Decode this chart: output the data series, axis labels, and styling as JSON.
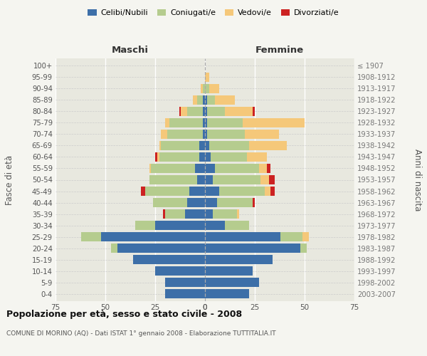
{
  "age_groups": [
    "0-4",
    "5-9",
    "10-14",
    "15-19",
    "20-24",
    "25-29",
    "30-34",
    "35-39",
    "40-44",
    "45-49",
    "50-54",
    "55-59",
    "60-64",
    "65-69",
    "70-74",
    "75-79",
    "80-84",
    "85-89",
    "90-94",
    "95-99",
    "100+"
  ],
  "birth_years": [
    "2003-2007",
    "1998-2002",
    "1993-1997",
    "1988-1992",
    "1983-1987",
    "1978-1982",
    "1973-1977",
    "1968-1972",
    "1963-1967",
    "1958-1962",
    "1953-1957",
    "1948-1952",
    "1943-1947",
    "1938-1942",
    "1933-1937",
    "1928-1932",
    "1923-1927",
    "1918-1922",
    "1913-1917",
    "1908-1912",
    "≤ 1907"
  ],
  "maschi": {
    "celibi": [
      20,
      20,
      25,
      36,
      44,
      52,
      25,
      10,
      9,
      8,
      4,
      5,
      3,
      3,
      1,
      1,
      1,
      1,
      0,
      0,
      0
    ],
    "coniugati": [
      0,
      0,
      0,
      0,
      3,
      10,
      10,
      10,
      17,
      22,
      24,
      22,
      20,
      19,
      18,
      17,
      8,
      3,
      1,
      0,
      0
    ],
    "vedovi": [
      0,
      0,
      0,
      0,
      0,
      0,
      0,
      0,
      0,
      0,
      0,
      1,
      1,
      1,
      3,
      2,
      3,
      2,
      1,
      0,
      0
    ],
    "divorziati": [
      0,
      0,
      0,
      0,
      0,
      0,
      0,
      1,
      0,
      2,
      0,
      0,
      1,
      0,
      0,
      0,
      1,
      0,
      0,
      0,
      0
    ]
  },
  "femmine": {
    "nubili": [
      22,
      27,
      24,
      34,
      48,
      38,
      10,
      4,
      6,
      7,
      4,
      5,
      3,
      2,
      1,
      1,
      1,
      1,
      0,
      0,
      0
    ],
    "coniugate": [
      0,
      0,
      0,
      0,
      3,
      11,
      12,
      12,
      18,
      23,
      24,
      22,
      18,
      20,
      19,
      18,
      9,
      4,
      2,
      0,
      0
    ],
    "vedove": [
      0,
      0,
      0,
      0,
      0,
      3,
      0,
      1,
      0,
      3,
      4,
      4,
      10,
      19,
      17,
      31,
      14,
      10,
      5,
      2,
      0
    ],
    "divorziate": [
      0,
      0,
      0,
      0,
      0,
      0,
      0,
      0,
      1,
      2,
      3,
      2,
      0,
      0,
      0,
      0,
      1,
      0,
      0,
      0,
      0
    ]
  },
  "colors": {
    "celibi": "#3d6fa8",
    "coniugati": "#b5cc8e",
    "vedovi": "#f5c87a",
    "divorziati": "#cc2222"
  },
  "xlim": 75,
  "title": "Popolazione per età, sesso e stato civile - 2008",
  "subtitle": "COMUNE DI MORINO (AQ) - Dati ISTAT 1° gennaio 2008 - Elaborazione TUTTITALIA.IT",
  "ylabel_left": "Fasce di età",
  "ylabel_right": "Anni di nascita",
  "xlabel_maschi": "Maschi",
  "xlabel_femmine": "Femmine",
  "bg_color": "#f5f5f0",
  "plot_bg": "#e8e8df"
}
